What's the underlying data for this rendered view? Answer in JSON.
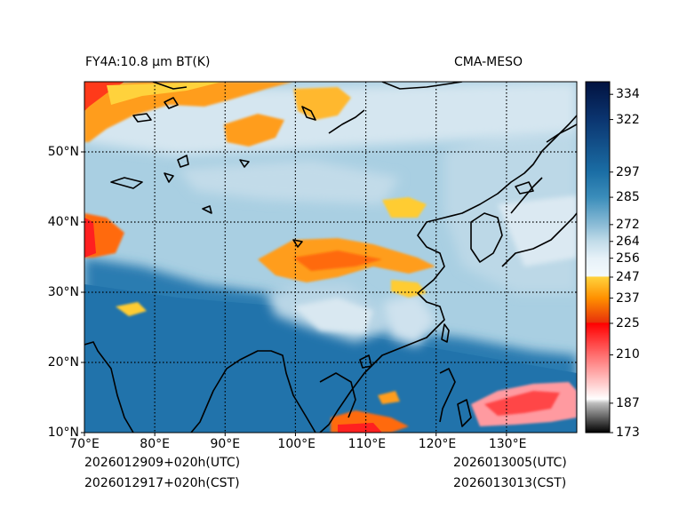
{
  "figure": {
    "title_left": "FY4A:10.8 μm BT(K)",
    "title_right": "CMA-MESO",
    "footer": {
      "init_utc": "2026012909+020h(UTC)",
      "init_cst": "2026012917+020h(CST)",
      "valid_utc": "2026013005(UTC)",
      "valid_cst": "2026013013(CST)"
    }
  },
  "map": {
    "lon_ticks": [
      {
        "value": 70,
        "label": "70°E"
      },
      {
        "value": 80,
        "label": "80°E"
      },
      {
        "value": 90,
        "label": "90°E"
      },
      {
        "value": 100,
        "label": "100°E"
      },
      {
        "value": 110,
        "label": "110°E"
      },
      {
        "value": 120,
        "label": "120°E"
      },
      {
        "value": 130,
        "label": "130°E"
      }
    ],
    "lat_ticks": [
      {
        "value": 10,
        "label": "10°N"
      },
      {
        "value": 20,
        "label": "20°N"
      },
      {
        "value": 30,
        "label": "30°N"
      },
      {
        "value": 40,
        "label": "40°N"
      },
      {
        "value": 50,
        "label": "50°N"
      }
    ],
    "lon_range": [
      70,
      140
    ],
    "lat_range": [
      10,
      60
    ],
    "field": "brightness temperature (K)"
  },
  "colorbar": {
    "range": [
      173,
      340
    ],
    "ticks": [
      {
        "value": 173,
        "label": "173"
      },
      {
        "value": 187,
        "label": "187"
      },
      {
        "value": 210,
        "label": "210"
      },
      {
        "value": 225,
        "label": "225"
      },
      {
        "value": 237,
        "label": "237"
      },
      {
        "value": 247,
        "label": "247"
      },
      {
        "value": 256,
        "label": "256"
      },
      {
        "value": 264,
        "label": "264"
      },
      {
        "value": 272,
        "label": "272"
      },
      {
        "value": 285,
        "label": "285"
      },
      {
        "value": 297,
        "label": "297"
      },
      {
        "value": 322,
        "label": "322"
      },
      {
        "value": 334,
        "label": "334"
      }
    ],
    "stops": [
      {
        "value": 173,
        "color": "#000000"
      },
      {
        "value": 187,
        "color": "#bdbdbd"
      },
      {
        "value": 189,
        "color": "#ffffff"
      },
      {
        "value": 210,
        "color": "#ff6e6e"
      },
      {
        "value": 225,
        "color": "#ff0000"
      },
      {
        "value": 225.5,
        "color": "#e8320a"
      },
      {
        "value": 237,
        "color": "#ff9000"
      },
      {
        "value": 247,
        "color": "#ffd23c"
      },
      {
        "value": 247.5,
        "color": "#f4fafd"
      },
      {
        "value": 256,
        "color": "#e6f1f8"
      },
      {
        "value": 264,
        "color": "#c2dce9"
      },
      {
        "value": 272,
        "color": "#8bbcd6"
      },
      {
        "value": 285,
        "color": "#3b8dba"
      },
      {
        "value": 297,
        "color": "#1b6ea5"
      },
      {
        "value": 322,
        "color": "#0b3570"
      },
      {
        "value": 340,
        "color": "#021240"
      }
    ]
  }
}
